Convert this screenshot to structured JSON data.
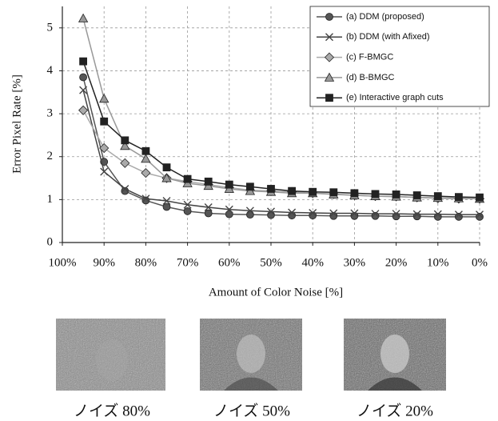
{
  "chart_data": {
    "type": "line",
    "y_label": "Error Pixel Rate [%]",
    "x_label": "Amount of Color Noise  [%]",
    "x": [
      95,
      90,
      85,
      80,
      75,
      70,
      65,
      60,
      55,
      50,
      45,
      40,
      35,
      30,
      25,
      20,
      15,
      10,
      5,
      0
    ],
    "xlim": [
      100,
      0
    ],
    "xticks": [
      {
        "value": 100,
        "label": "100%"
      },
      {
        "value": 90,
        "label": "90%"
      },
      {
        "value": 80,
        "label": "80%"
      },
      {
        "value": 70,
        "label": "70%"
      },
      {
        "value": 60,
        "label": "60%"
      },
      {
        "value": 50,
        "label": "50%"
      },
      {
        "value": 40,
        "label": "40%"
      },
      {
        "value": 30,
        "label": "30%"
      },
      {
        "value": 20,
        "label": "20%"
      },
      {
        "value": 10,
        "label": "10%"
      },
      {
        "value": 0,
        "label": "0%"
      }
    ],
    "ylim": [
      0,
      5.5
    ],
    "yticks": [
      0,
      1,
      2,
      3,
      4,
      5
    ],
    "grid": true,
    "legend": "top-right",
    "series": [
      {
        "name": "(a) DDM (proposed)",
        "color": "#555555",
        "marker": "circle",
        "values": [
          3.85,
          1.88,
          1.2,
          0.98,
          0.83,
          0.73,
          0.68,
          0.66,
          0.65,
          0.64,
          0.63,
          0.63,
          0.62,
          0.62,
          0.62,
          0.61,
          0.61,
          0.6,
          0.6,
          0.6
        ]
      },
      {
        "name": "(b) DDM (with Afixed)",
        "color": "#444444",
        "marker": "cross",
        "values": [
          3.55,
          1.65,
          1.25,
          1.02,
          0.97,
          0.88,
          0.82,
          0.77,
          0.74,
          0.72,
          0.7,
          0.69,
          0.68,
          0.68,
          0.67,
          0.67,
          0.66,
          0.66,
          0.65,
          0.65
        ]
      },
      {
        "name": "(c) F-BMGC",
        "color": "#aaaaaa",
        "marker": "diamond",
        "values": [
          3.08,
          2.2,
          1.85,
          1.62,
          1.5,
          1.42,
          1.35,
          1.28,
          1.22,
          1.2,
          1.18,
          1.15,
          1.13,
          1.1,
          1.08,
          1.07,
          1.05,
          1.03,
          1.02,
          1.02
        ]
      },
      {
        "name": "(d) B-BMGC",
        "color": "#999999",
        "marker": "triangle",
        "values": [
          5.22,
          3.35,
          2.25,
          1.95,
          1.5,
          1.38,
          1.32,
          1.25,
          1.2,
          1.18,
          1.15,
          1.15,
          1.12,
          1.1,
          1.08,
          1.07,
          1.05,
          1.04,
          1.03,
          1.02
        ]
      },
      {
        "name": "(e) Interactive graph cuts",
        "color": "#222222",
        "marker": "square",
        "values": [
          4.22,
          2.82,
          2.38,
          2.13,
          1.75,
          1.48,
          1.42,
          1.35,
          1.3,
          1.25,
          1.2,
          1.18,
          1.17,
          1.15,
          1.13,
          1.12,
          1.1,
          1.08,
          1.06,
          1.05
        ]
      }
    ]
  },
  "thumbnails": [
    {
      "caption": "ノイズ 80%"
    },
    {
      "caption": "ノイズ 50%"
    },
    {
      "caption": "ノイズ 20%"
    }
  ]
}
